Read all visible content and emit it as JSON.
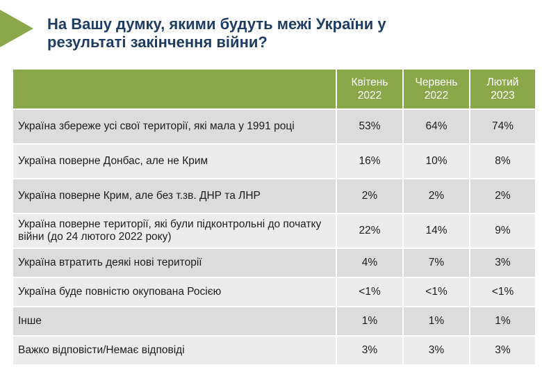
{
  "title": "На Вашу думку, якими будуть межі України у результаті закінчення війни?",
  "columns": [
    {
      "line1": "Квітень",
      "line2": "2022"
    },
    {
      "line1": "Червень",
      "line2": "2022"
    },
    {
      "line1": "Лютий",
      "line2": "2023"
    }
  ],
  "rows": [
    {
      "label": "Україна збереже усі свої території, які мала у 1991 році",
      "values": [
        "53%",
        "64%",
        "74%"
      ]
    },
    {
      "label": "Україна поверне Донбас, але не Крим",
      "values": [
        "16%",
        "10%",
        "8%"
      ]
    },
    {
      "label": "Україна поверне Крим, але без т.зв. ДНР та ЛНР",
      "values": [
        "2%",
        "2%",
        "2%"
      ]
    },
    {
      "label": "Україна поверне території, які були підконтрольні до початку війни (до 24 лютого 2022 року)",
      "values": [
        "22%",
        "14%",
        "9%"
      ]
    },
    {
      "label": "Україна втратить деякі нові території",
      "values": [
        "4%",
        "7%",
        "3%"
      ]
    },
    {
      "label": "Україна буде повністю окупована Росією",
      "values": [
        "<1%",
        "<1%",
        "<1%"
      ]
    },
    {
      "label": "Інше",
      "values": [
        "1%",
        "1%",
        "1%"
      ]
    },
    {
      "label": "Важко відповісти/Немає відповіді",
      "values": [
        "3%",
        "3%",
        "3%"
      ]
    }
  ],
  "colors": {
    "accent": "#8aa84a",
    "title": "#1f3d63",
    "row_dark": "#dcdcdc",
    "row_light": "#ececec"
  }
}
